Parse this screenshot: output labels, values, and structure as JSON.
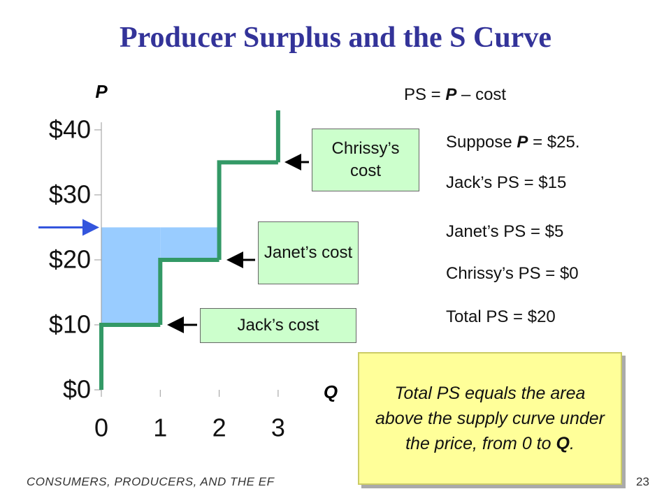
{
  "title": "Producer Surplus and the S Curve",
  "chart_data": {
    "type": "step",
    "y_label": "P",
    "x_label": "Q",
    "xlim": [
      0,
      4
    ],
    "xticks": [
      0,
      1,
      2,
      3
    ],
    "ylim": [
      0,
      43
    ],
    "yticks": [
      {
        "value": 0,
        "label": "$0"
      },
      {
        "value": 10,
        "label": "$10"
      },
      {
        "value": 20,
        "label": "$20"
      },
      {
        "value": 30,
        "label": "$30"
      },
      {
        "value": 40,
        "label": "$40"
      }
    ],
    "price": 25,
    "price_color": "#3355dd",
    "shade_color": "#99ccff",
    "series": [
      {
        "color": "#339966",
        "values": [
          10,
          20,
          35
        ]
      }
    ],
    "annotations": [
      "Jack’s cost",
      "Janet’s cost",
      "Chrissy’s cost"
    ]
  },
  "notes": {
    "formula": [
      "PS = ",
      "P",
      " – cost"
    ],
    "suppose": [
      "Suppose ",
      "P",
      " = $25."
    ],
    "lines": [
      "Jack’s PS = $15",
      "Janet’s PS = $5",
      "Chrissy’s PS = $0",
      "Total PS = $20"
    ]
  },
  "callout": [
    "Total PS equals the area above the supply curve under the price, from 0 to ",
    "Q",
    "."
  ],
  "footer": "CONSUMERS, PRODUCERS, AND THE EF",
  "page_number": "23"
}
